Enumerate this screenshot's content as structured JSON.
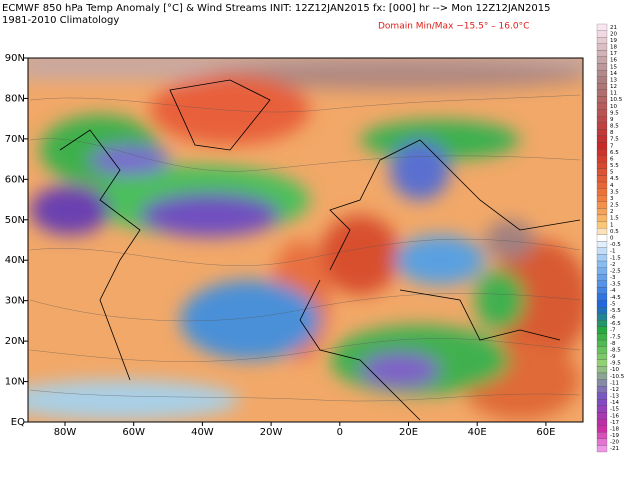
{
  "header": {
    "title": "ECMWF 850 hPa Temp Anomaly [°C] & Wind Streams INIT: 12Z12JAN2015 fx: [000] hr --> Mon 12Z12JAN2015",
    "subtitle": "1981-2010 Climatology",
    "domain_range": "Domain Min/Max −15.5° –  16.0°C"
  },
  "axes": {
    "lat_labels": [
      "90N",
      "80N",
      "70N",
      "60N",
      "50N",
      "40N",
      "30N",
      "20N",
      "10N",
      "EQ"
    ],
    "lon_labels": [
      "80W",
      "60W",
      "40W",
      "20W",
      "0",
      "20E",
      "40E",
      "60E"
    ]
  },
  "colorbar": {
    "labels": [
      "21",
      "20",
      "19",
      "18",
      "17",
      "16",
      "15",
      "14",
      "13",
      "12",
      "11",
      "10.5",
      "10",
      "9.5",
      "9",
      "8.5",
      "8",
      "7.5",
      "7",
      "6.5",
      "6",
      "5.5",
      "5",
      "4.5",
      "4",
      "3.5",
      "3",
      "2.5",
      "2",
      "1.5",
      "1",
      "0.5",
      "0",
      "-0.5",
      "-1",
      "-1.5",
      "-2",
      "-2.5",
      "-3",
      "-3.5",
      "-4",
      "-4.5",
      "-5",
      "-5.5",
      "-6",
      "-6.5",
      "-7",
      "-7.5",
      "-8",
      "-8.5",
      "-9",
      "-9.5",
      "-10",
      "-10.5",
      "-11",
      "-12",
      "-13",
      "-14",
      "-15",
      "-16",
      "-17",
      "-18",
      "-19",
      "-20",
      "-21"
    ]
  }
}
